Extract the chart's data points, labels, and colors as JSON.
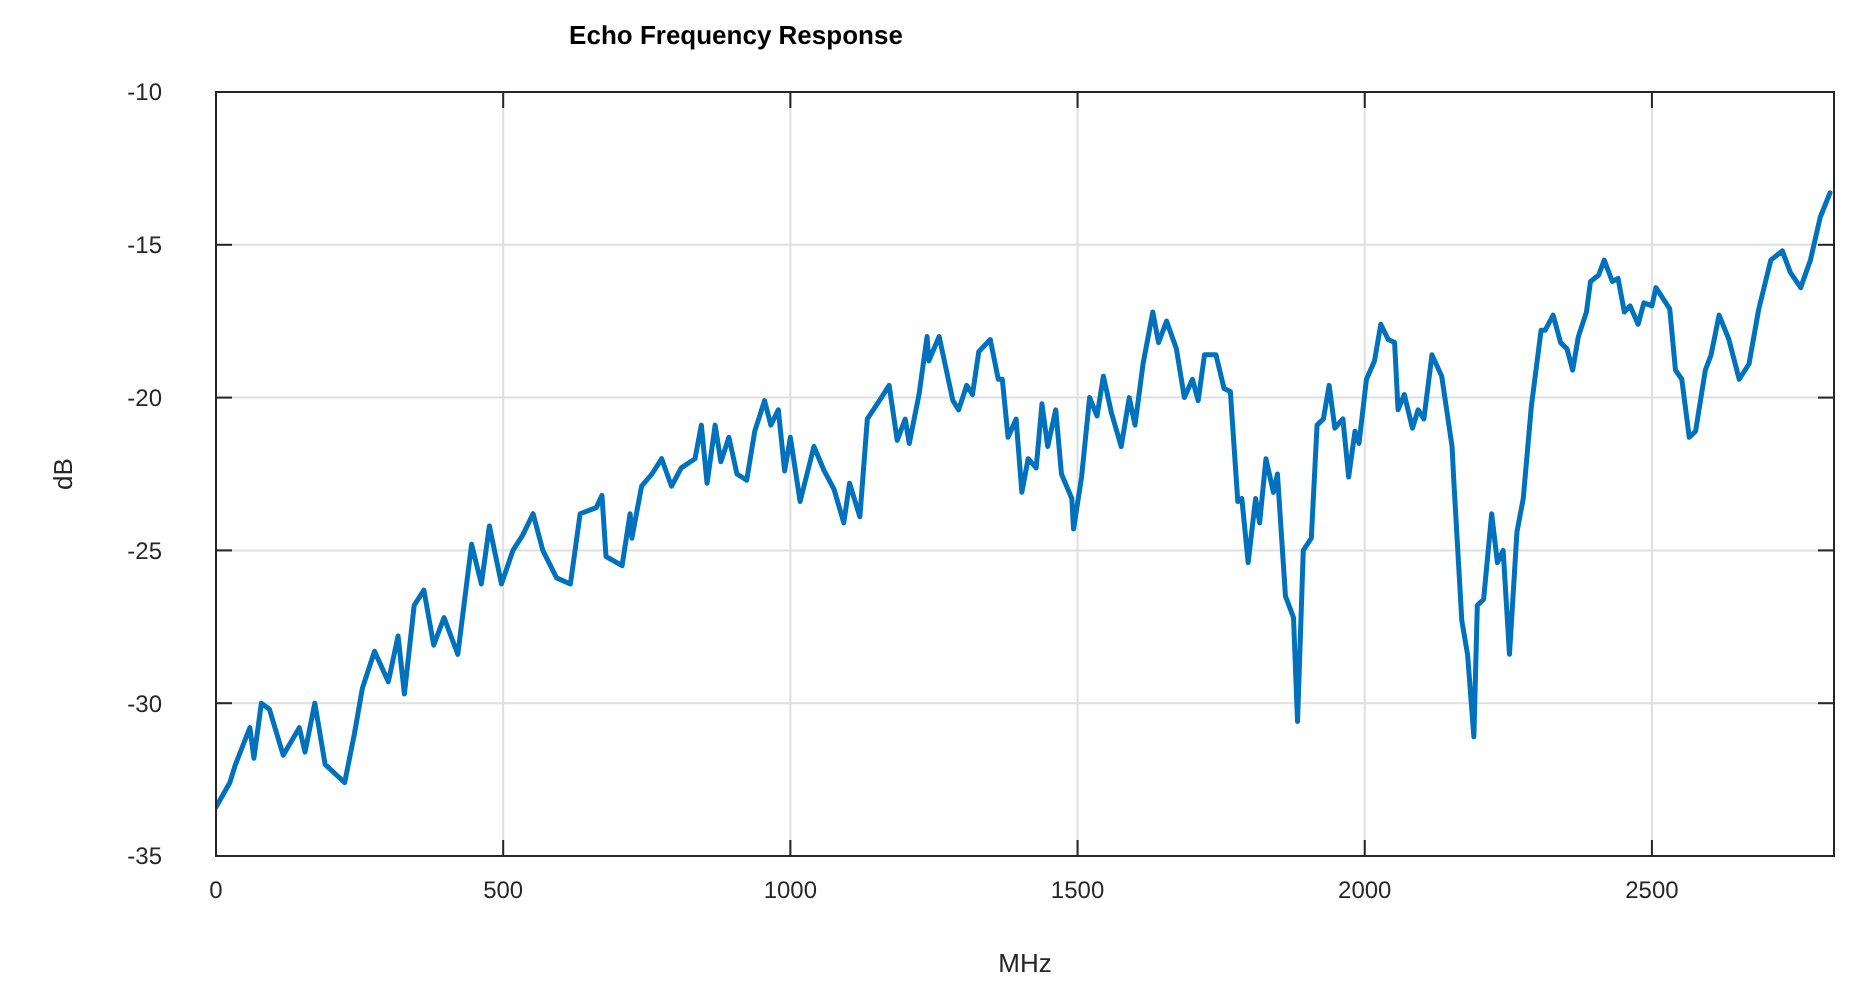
{
  "chart_data": {
    "type": "line",
    "title": "Echo Frequency Response",
    "xlabel": "MHz",
    "ylabel": "dB",
    "xlim": [
      0,
      2817
    ],
    "ylim": [
      -35,
      -10
    ],
    "xticks": [
      0,
      500,
      1000,
      1500,
      2000,
      2500
    ],
    "yticks": [
      -35,
      -30,
      -25,
      -20,
      -15,
      -10
    ],
    "grid": true,
    "line_style": "solid",
    "marker": "none",
    "series": [
      {
        "color": "#0072bd",
        "x": [
          0,
          24,
          34,
          59,
          66,
          79,
          93,
          117,
          145,
          155,
          172,
          190,
          207,
          224,
          241,
          255,
          276,
          300,
          317,
          328,
          345,
          362,
          379,
          397,
          421,
          445,
          462,
          476,
          497,
          517,
          534,
          552,
          569,
          593,
          617,
          634,
          662,
          672,
          679,
          707,
          721,
          724,
          741,
          759,
          776,
          793,
          810,
          834,
          845,
          855,
          869,
          879,
          893,
          907,
          924,
          938,
          955,
          966,
          979,
          990,
          1000,
          1017,
          1041,
          1059,
          1076,
          1093,
          1103,
          1121,
          1134,
          1155,
          1172,
          1186,
          1200,
          1207,
          1224,
          1238,
          1241,
          1259,
          1283,
          1293,
          1307,
          1317,
          1328,
          1348,
          1362,
          1369,
          1379,
          1393,
          1403,
          1414,
          1428,
          1438,
          1448,
          1462,
          1472,
          1490,
          1493,
          1507,
          1521,
          1534,
          1545,
          1559,
          1576,
          1590,
          1600,
          1614,
          1631,
          1641,
          1655,
          1672,
          1686,
          1700,
          1710,
          1721,
          1741,
          1755,
          1766,
          1779,
          1786,
          1797,
          1810,
          1817,
          1828,
          1841,
          1848,
          1862,
          1876,
          1883,
          1893,
          1907,
          1917,
          1928,
          1938,
          1948,
          1962,
          1972,
          1983,
          1990,
          2003,
          2017,
          2028,
          2041,
          2052,
          2058,
          2069,
          2083,
          2093,
          2103,
          2117,
          2134,
          2152,
          2155,
          2169,
          2179,
          2190,
          2196,
          2207,
          2221,
          2231,
          2241,
          2252,
          2265,
          2276,
          2290,
          2307,
          2314,
          2328,
          2341,
          2352,
          2362,
          2372,
          2386,
          2393,
          2407,
          2417,
          2431,
          2441,
          2452,
          2462,
          2476,
          2486,
          2500,
          2507,
          2531,
          2541,
          2552,
          2565,
          2576,
          2593,
          2603,
          2617,
          2634,
          2652,
          2669,
          2686,
          2707,
          2727,
          2741,
          2759,
          2776,
          2793,
          2810
        ],
        "values": [
          -33.4,
          -32.6,
          -32.0,
          -30.8,
          -31.8,
          -30.0,
          -30.2,
          -31.7,
          -30.8,
          -31.6,
          -30.0,
          -32.0,
          -32.3,
          -32.6,
          -31.0,
          -29.5,
          -28.3,
          -29.3,
          -27.8,
          -29.7,
          -26.8,
          -26.3,
          -28.1,
          -27.2,
          -28.4,
          -24.8,
          -26.1,
          -24.2,
          -26.1,
          -25.0,
          -24.5,
          -23.8,
          -25.0,
          -25.9,
          -26.1,
          -23.8,
          -23.6,
          -23.2,
          -25.2,
          -25.5,
          -23.8,
          -24.6,
          -22.9,
          -22.5,
          -22.0,
          -22.9,
          -22.3,
          -22.0,
          -20.9,
          -22.8,
          -20.9,
          -22.1,
          -21.3,
          -22.5,
          -22.7,
          -21.1,
          -20.1,
          -20.9,
          -20.4,
          -22.4,
          -21.3,
          -23.4,
          -21.6,
          -22.4,
          -23.0,
          -24.1,
          -22.8,
          -23.9,
          -20.7,
          -20.1,
          -19.6,
          -21.4,
          -20.7,
          -21.5,
          -19.9,
          -18.0,
          -18.8,
          -18.0,
          -20.1,
          -20.4,
          -19.6,
          -19.9,
          -18.5,
          -18.1,
          -19.4,
          -19.4,
          -21.3,
          -20.7,
          -23.1,
          -22.0,
          -22.3,
          -20.2,
          -21.6,
          -20.4,
          -22.5,
          -23.3,
          -24.3,
          -22.6,
          -20.0,
          -20.6,
          -19.3,
          -20.5,
          -21.6,
          -20.0,
          -20.9,
          -18.9,
          -17.2,
          -18.2,
          -17.5,
          -18.4,
          -20.0,
          -19.4,
          -20.1,
          -18.6,
          -18.6,
          -19.7,
          -19.8,
          -23.4,
          -23.3,
          -25.4,
          -23.3,
          -24.1,
          -22.0,
          -23.1,
          -22.5,
          -26.5,
          -27.2,
          -30.6,
          -25.0,
          -24.6,
          -20.9,
          -20.7,
          -19.6,
          -21.0,
          -20.7,
          -22.6,
          -21.1,
          -21.5,
          -19.4,
          -18.8,
          -17.6,
          -18.1,
          -18.2,
          -20.4,
          -19.9,
          -21.0,
          -20.4,
          -20.7,
          -18.6,
          -19.3,
          -21.6,
          -22.7,
          -27.3,
          -28.4,
          -31.1,
          -26.8,
          -26.6,
          -23.8,
          -25.4,
          -25.0,
          -28.4,
          -24.4,
          -23.3,
          -20.3,
          -17.8,
          -17.8,
          -17.3,
          -18.2,
          -18.4,
          -19.1,
          -18.0,
          -17.2,
          -16.2,
          -16.0,
          -15.5,
          -16.2,
          -16.1,
          -17.2,
          -17.0,
          -17.6,
          -16.9,
          -17.0,
          -16.4,
          -17.1,
          -19.1,
          -19.4,
          -21.3,
          -21.1,
          -19.1,
          -18.6,
          -17.3,
          -18.1,
          -19.4,
          -18.9,
          -17.1,
          -15.5,
          -15.2,
          -15.9,
          -16.4,
          -15.5,
          -14.1,
          -13.3
        ]
      }
    ]
  }
}
